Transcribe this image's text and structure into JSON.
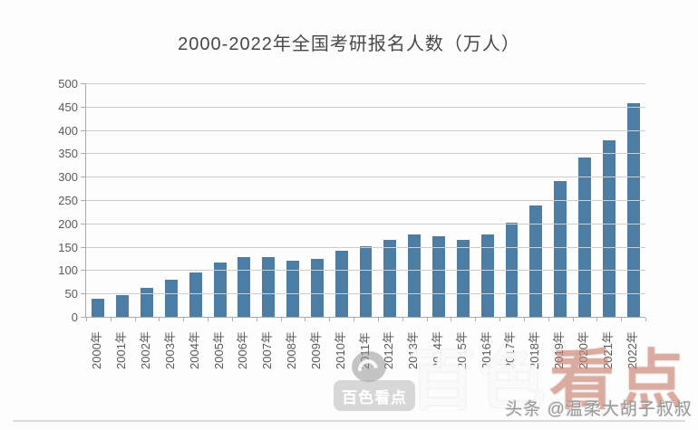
{
  "chart_data": {
    "type": "bar",
    "title": "2000-2022年全国考研报名人数（万人）",
    "categories": [
      "2000年",
      "2001年",
      "2002年",
      "2003年",
      "2004年",
      "2005年",
      "2006年",
      "2007年",
      "2008年",
      "2009年",
      "2010年",
      "2011年",
      "2012年",
      "2013年",
      "2014年",
      "2015年",
      "2016年",
      "2017年",
      "2018年",
      "2019年",
      "2020年",
      "2021年",
      "2022年"
    ],
    "values": [
      39.2,
      46,
      62.4,
      79.7,
      94.5,
      117.2,
      127.1,
      128.2,
      120,
      124.6,
      140.6,
      151.1,
      165.6,
      176,
      172,
      164.9,
      177,
      201,
      238,
      290,
      341,
      377,
      457
    ],
    "xlabel": "",
    "ylabel": "",
    "ylim": [
      0,
      500
    ],
    "ytick_step": 50,
    "grid": true,
    "legend_position": "none",
    "bar_color": "#4b7da5",
    "xtick_rotation": -90
  },
  "watermarks": {
    "badge_text": "百色看点",
    "big_text": "百色看点",
    "byline_text": "头条 @温柔大胡子叔叔"
  }
}
